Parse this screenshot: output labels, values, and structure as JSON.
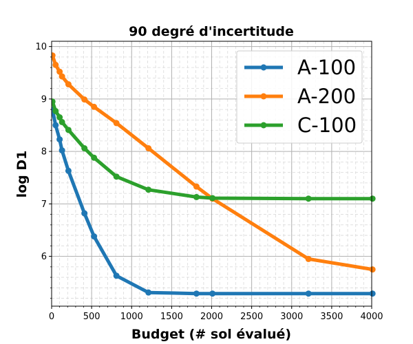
{
  "chart_data": {
    "type": "line",
    "title": "90 degré d'incertitude",
    "xlabel": "Budget (# sol évalué)",
    "ylabel": "log D1",
    "xlim": [
      0,
      4000
    ],
    "ylim": [
      5.05,
      10.1
    ],
    "xticks": [
      0,
      500,
      1000,
      1500,
      2000,
      2500,
      3000,
      3500,
      4000
    ],
    "yticks": [
      6,
      7,
      8,
      9,
      10
    ],
    "grid": true,
    "minor_grid": true,
    "legend_position": "top-right",
    "series": [
      {
        "name": "A-100",
        "color": "#1f77b4",
        "x": [
          10,
          50,
          100,
          130,
          210,
          410,
          530,
          810,
          1210,
          1810,
          2010,
          3210,
          4010
        ],
        "y": [
          8.8,
          8.5,
          8.23,
          8.02,
          7.63,
          6.82,
          6.38,
          5.63,
          5.31,
          5.29,
          5.29,
          5.29,
          5.29
        ]
      },
      {
        "name": "A-200",
        "color": "#ff7f0e",
        "x": [
          10,
          50,
          100,
          130,
          210,
          410,
          530,
          810,
          1210,
          1810,
          2010,
          3210,
          4010
        ],
        "y": [
          9.83,
          9.65,
          9.52,
          9.43,
          9.28,
          8.99,
          8.85,
          8.54,
          8.06,
          7.33,
          7.1,
          5.95,
          5.75
        ]
      },
      {
        "name": "C-100",
        "color": "#2ca02c",
        "x": [
          10,
          50,
          100,
          130,
          210,
          410,
          530,
          810,
          1210,
          1810,
          2010,
          3210,
          4010
        ],
        "y": [
          8.95,
          8.77,
          8.65,
          8.56,
          8.41,
          8.06,
          7.88,
          7.52,
          7.27,
          7.13,
          7.11,
          7.1,
          7.1
        ]
      }
    ]
  }
}
